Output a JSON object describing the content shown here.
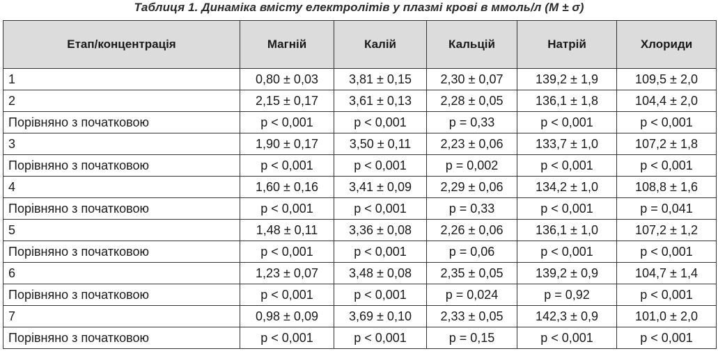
{
  "caption": "Таблиця 1. Динаміка вмісту електролітів у плазмі крові в ммоль/л (М ± σ)",
  "headers": [
    "Етап/концентрація",
    "Магній",
    "Калій",
    "Кальцій",
    "Натрій",
    "Хлориди"
  ],
  "rows": [
    [
      "1",
      "0,80 ± 0,03",
      "3,81 ± 0,15",
      "2,30 ± 0,07",
      "139,2 ± 1,9",
      "109,5 ± 2,0"
    ],
    [
      "2",
      "2,15 ± 0,17",
      "3,61 ± 0,13",
      "2,28 ± 0,05",
      "136,1 ± 1,8",
      "104,4 ± 2,0"
    ],
    [
      "Порівняно з початковою",
      "p < 0,001",
      "p < 0,001",
      "p = 0,33",
      "p < 0,001",
      "p < 0,001"
    ],
    [
      "3",
      "1,90 ± 0,17",
      "3,50 ± 0,11",
      "2,23 ± 0,06",
      "133,7 ± 1,0",
      "107,2 ± 1,8"
    ],
    [
      "Порівняно з початковою",
      "p < 0,001",
      "p < 0,001",
      "p = 0,002",
      "p < 0,001",
      "p < 0,001"
    ],
    [
      "4",
      "1,60 ± 0,16",
      "3,41 ± 0,09",
      "2,29 ± 0,06",
      "134,2 ± 1,0",
      "108,8 ± 1,6"
    ],
    [
      "Порівняно з початковою",
      "p < 0,001",
      "p < 0,001",
      "p = 0,33",
      "p < 0,001",
      "p = 0,041"
    ],
    [
      "5",
      "1,48 ± 0,11",
      "3,36 ± 0,08",
      "2,26 ± 0,06",
      "136,1 ± 1,0",
      "107,2 ± 1,2"
    ],
    [
      "Порівняно з початковою",
      "p < 0,001",
      "p < 0,001",
      "p = 0,06",
      "p < 0,001",
      "p < 0,001"
    ],
    [
      "6",
      "1,23 ± 0,07",
      "3,48 ± 0,08",
      "2,35 ± 0,05",
      "139,2 ± 0,9",
      "104,7 ± 1,4"
    ],
    [
      "Порівняно з початковою",
      "p < 0,001",
      "p < 0,001",
      "p = 0,024",
      "p = 0,92",
      "p < 0,001"
    ],
    [
      "7",
      "0,98 ± 0,09",
      "3,69 ± 0,10",
      "2,33 ± 0,05",
      "142,3 ± 0,9",
      "101,0 ± 2,0"
    ],
    [
      "Порівняно з початковою",
      "p < 0,001",
      "p < 0,001",
      "p = 0,15",
      "p < 0,001",
      "p < 0,001"
    ]
  ]
}
